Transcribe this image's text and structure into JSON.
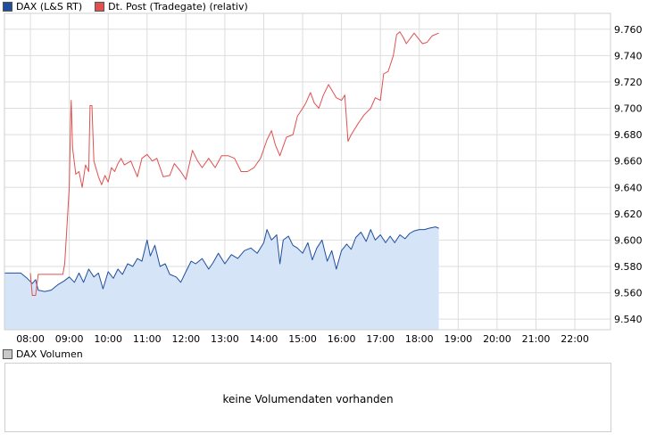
{
  "legend": {
    "series1": {
      "label": "DAX (L&S RT)",
      "color": "#1f4e9c"
    },
    "series2": {
      "label": "Dt. Post (Tradegate) (relativ)",
      "color": "#e05050"
    }
  },
  "volume": {
    "legend_label": "DAX Volumen",
    "message": "keine Volumendaten vorhanden"
  },
  "chart_data": {
    "type": "line",
    "title": "",
    "xlabel": "",
    "ylabel": "",
    "x_ticks": [
      "08:00",
      "09:00",
      "10:00",
      "11:00",
      "12:00",
      "13:00",
      "14:00",
      "15:00",
      "16:00",
      "17:00",
      "18:00",
      "19:00",
      "20:00",
      "21:00",
      "22:00"
    ],
    "y_ticks": [
      "9.540",
      "9.560",
      "9.580",
      "9.600",
      "9.620",
      "9.640",
      "9.660",
      "9.680",
      "9.700",
      "9.720",
      "9.740",
      "9.760"
    ],
    "ylim": [
      9532,
      9772
    ],
    "xlim": [
      "07:20",
      "22:55"
    ],
    "grid": true,
    "legend_position": "top-left",
    "series": [
      {
        "name": "DAX (L&S RT)",
        "color": "#1f4e9c",
        "fill": "#d6e4f7",
        "points": [
          [
            "07:20",
            9575
          ],
          [
            "07:45",
            9575
          ],
          [
            "07:55",
            9571
          ],
          [
            "08:03",
            9567
          ],
          [
            "08:08",
            9570
          ],
          [
            "08:12",
            9562
          ],
          [
            "08:22",
            9561
          ],
          [
            "08:32",
            9562
          ],
          [
            "08:42",
            9566
          ],
          [
            "08:52",
            9569
          ],
          [
            "09:00",
            9572
          ],
          [
            "09:08",
            9568
          ],
          [
            "09:15",
            9575
          ],
          [
            "09:22",
            9568
          ],
          [
            "09:30",
            9578
          ],
          [
            "09:38",
            9572
          ],
          [
            "09:45",
            9575
          ],
          [
            "09:52",
            9563
          ],
          [
            "10:00",
            9576
          ],
          [
            "10:08",
            9571
          ],
          [
            "10:15",
            9578
          ],
          [
            "10:22",
            9574
          ],
          [
            "10:30",
            9582
          ],
          [
            "10:38",
            9580
          ],
          [
            "10:45",
            9586
          ],
          [
            "10:52",
            9584
          ],
          [
            "11:00",
            9600
          ],
          [
            "11:05",
            9588
          ],
          [
            "11:12",
            9596
          ],
          [
            "11:20",
            9580
          ],
          [
            "11:28",
            9582
          ],
          [
            "11:35",
            9574
          ],
          [
            "11:45",
            9572
          ],
          [
            "11:52",
            9568
          ],
          [
            "12:00",
            9576
          ],
          [
            "12:08",
            9584
          ],
          [
            "12:15",
            9582
          ],
          [
            "12:25",
            9586
          ],
          [
            "12:35",
            9578
          ],
          [
            "12:42",
            9583
          ],
          [
            "12:50",
            9590
          ],
          [
            "13:00",
            9582
          ],
          [
            "13:10",
            9589
          ],
          [
            "13:20",
            9586
          ],
          [
            "13:30",
            9592
          ],
          [
            "13:40",
            9594
          ],
          [
            "13:50",
            9590
          ],
          [
            "14:00",
            9598
          ],
          [
            "14:05",
            9608
          ],
          [
            "14:12",
            9600
          ],
          [
            "14:20",
            9604
          ],
          [
            "14:25",
            9582
          ],
          [
            "14:30",
            9600
          ],
          [
            "14:38",
            9603
          ],
          [
            "14:45",
            9596
          ],
          [
            "14:52",
            9594
          ],
          [
            "15:00",
            9590
          ],
          [
            "15:08",
            9598
          ],
          [
            "15:15",
            9585
          ],
          [
            "15:22",
            9594
          ],
          [
            "15:30",
            9600
          ],
          [
            "15:38",
            9584
          ],
          [
            "15:45",
            9592
          ],
          [
            "15:52",
            9578
          ],
          [
            "16:00",
            9592
          ],
          [
            "16:08",
            9597
          ],
          [
            "16:15",
            9593
          ],
          [
            "16:22",
            9602
          ],
          [
            "16:30",
            9606
          ],
          [
            "16:38",
            9599
          ],
          [
            "16:45",
            9608
          ],
          [
            "16:52",
            9600
          ],
          [
            "17:00",
            9604
          ],
          [
            "17:08",
            9598
          ],
          [
            "17:15",
            9603
          ],
          [
            "17:22",
            9598
          ],
          [
            "17:30",
            9604
          ],
          [
            "17:38",
            9601
          ],
          [
            "17:45",
            9605
          ],
          [
            "17:52",
            9607
          ],
          [
            "18:00",
            9608
          ],
          [
            "18:08",
            9608
          ],
          [
            "18:15",
            9609
          ],
          [
            "18:25",
            9610
          ],
          [
            "18:30",
            9609
          ]
        ]
      },
      {
        "name": "Dt. Post (Tradegate) (relativ)",
        "color": "#e05050",
        "points": [
          [
            "08:00",
            9575
          ],
          [
            "08:03",
            9558
          ],
          [
            "08:08",
            9558
          ],
          [
            "08:12",
            9574
          ],
          [
            "08:50",
            9574
          ],
          [
            "08:53",
            9582
          ],
          [
            "09:00",
            9640
          ],
          [
            "09:02",
            9692
          ],
          [
            "09:03",
            9706
          ],
          [
            "09:05",
            9670
          ],
          [
            "09:10",
            9650
          ],
          [
            "09:15",
            9652
          ],
          [
            "09:20",
            9640
          ],
          [
            "09:25",
            9657
          ],
          [
            "09:30",
            9652
          ],
          [
            "09:32",
            9702
          ],
          [
            "09:35",
            9702
          ],
          [
            "09:38",
            9660
          ],
          [
            "09:45",
            9648
          ],
          [
            "09:50",
            9642
          ],
          [
            "09:55",
            9649
          ],
          [
            "10:00",
            9644
          ],
          [
            "10:05",
            9655
          ],
          [
            "10:10",
            9652
          ],
          [
            "10:15",
            9658
          ],
          [
            "10:20",
            9662
          ],
          [
            "10:25",
            9657
          ],
          [
            "10:35",
            9660
          ],
          [
            "10:45",
            9648
          ],
          [
            "10:52",
            9662
          ],
          [
            "11:00",
            9665
          ],
          [
            "11:08",
            9660
          ],
          [
            "11:15",
            9662
          ],
          [
            "11:25",
            9648
          ],
          [
            "11:35",
            9649
          ],
          [
            "11:42",
            9658
          ],
          [
            "11:52",
            9652
          ],
          [
            "12:00",
            9646
          ],
          [
            "12:10",
            9668
          ],
          [
            "12:18",
            9660
          ],
          [
            "12:25",
            9655
          ],
          [
            "12:35",
            9662
          ],
          [
            "12:45",
            9655
          ],
          [
            "12:55",
            9664
          ],
          [
            "13:05",
            9664
          ],
          [
            "13:15",
            9662
          ],
          [
            "13:25",
            9652
          ],
          [
            "13:35",
            9652
          ],
          [
            "13:45",
            9655
          ],
          [
            "13:55",
            9662
          ],
          [
            "14:05",
            9676
          ],
          [
            "14:12",
            9683
          ],
          [
            "14:18",
            9672
          ],
          [
            "14:25",
            9664
          ],
          [
            "14:35",
            9678
          ],
          [
            "14:45",
            9680
          ],
          [
            "14:52",
            9694
          ],
          [
            "15:00",
            9700
          ],
          [
            "15:05",
            9704
          ],
          [
            "15:12",
            9712
          ],
          [
            "15:18",
            9704
          ],
          [
            "15:25",
            9700
          ],
          [
            "15:32",
            9710
          ],
          [
            "15:40",
            9718
          ],
          [
            "15:52",
            9708
          ],
          [
            "16:00",
            9706
          ],
          [
            "16:05",
            9710
          ],
          [
            "16:10",
            9675
          ],
          [
            "16:15",
            9680
          ],
          [
            "16:25",
            9688
          ],
          [
            "16:35",
            9695
          ],
          [
            "16:45",
            9700
          ],
          [
            "16:52",
            9708
          ],
          [
            "17:00",
            9706
          ],
          [
            "17:05",
            9726
          ],
          [
            "17:12",
            9728
          ],
          [
            "17:20",
            9740
          ],
          [
            "17:25",
            9756
          ],
          [
            "17:30",
            9758
          ],
          [
            "17:35",
            9754
          ],
          [
            "17:40",
            9749
          ],
          [
            "17:52",
            9757
          ],
          [
            "18:00",
            9752
          ],
          [
            "18:05",
            9749
          ],
          [
            "18:12",
            9750
          ],
          [
            "18:20",
            9755
          ],
          [
            "18:30",
            9757
          ]
        ]
      }
    ]
  }
}
